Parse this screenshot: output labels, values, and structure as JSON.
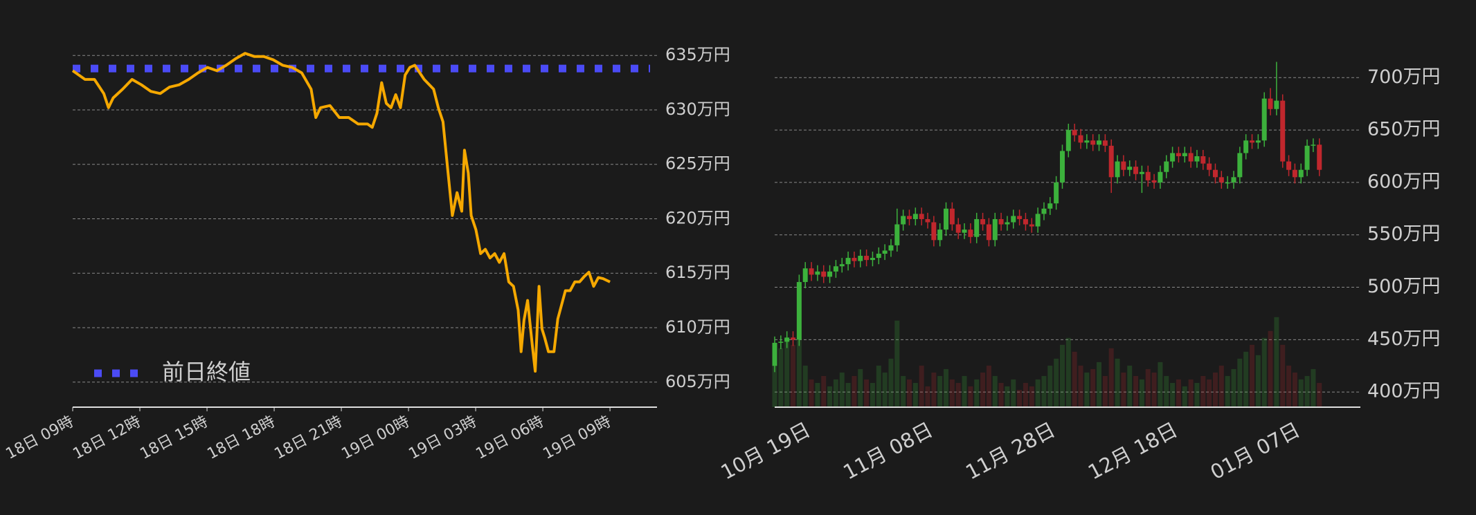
{
  "chart_data": [
    {
      "type": "line",
      "color": "#f5a800",
      "grid": true,
      "x": [
        0,
        0.55,
        0.97,
        1.39,
        1.6,
        1.81,
        2.23,
        2.65,
        3.07,
        3.49,
        3.91,
        4.33,
        4.75,
        5.18,
        5.6,
        6.02,
        6.44,
        6.86,
        7.28,
        7.7,
        8.12,
        8.54,
        8.96,
        9.38,
        9.8,
        10.23,
        10.65,
        10.86,
        11.07,
        11.49,
        11.91,
        12.33,
        12.75,
        13.17,
        13.38,
        13.59,
        13.8,
        14.01,
        14.22,
        14.43,
        14.64,
        14.85,
        15.06,
        15.28,
        15.7,
        16.12,
        16.33,
        16.54,
        16.75,
        16.96,
        17.17,
        17.38,
        17.5,
        17.67,
        17.8,
        18.01,
        18.22,
        18.43,
        18.64,
        18.85,
        19.06,
        19.27,
        19.48,
        19.69,
        19.9,
        20.03,
        20.16,
        20.32,
        20.54,
        20.66,
        20.83,
        20.96,
        21.08,
        21.25,
        21.5,
        21.67,
        21.84,
        22.01,
        22.22,
        22.43,
        22.64,
        22.85,
        23.06,
        23.27,
        23.48,
        23.69,
        24.0
      ],
      "values": [
        633.6,
        632.8,
        632.8,
        631.5,
        630.2,
        631.1,
        631.9,
        632.8,
        632.3,
        631.7,
        631.5,
        632.1,
        632.3,
        632.8,
        633.4,
        633.9,
        633.6,
        634.1,
        634.7,
        635.2,
        634.9,
        634.9,
        634.6,
        634.1,
        633.9,
        633.4,
        631.9,
        629.3,
        630.2,
        630.4,
        629.3,
        629.3,
        628.7,
        628.7,
        628.4,
        629.7,
        632.5,
        630.6,
        630.2,
        631.4,
        630.2,
        633.2,
        633.9,
        634.1,
        632.8,
        631.9,
        630.2,
        628.9,
        624.6,
        620.3,
        622.4,
        620.7,
        626.3,
        624.2,
        620.3,
        619.0,
        616.8,
        617.2,
        616.4,
        616.8,
        616.0,
        616.8,
        614.2,
        613.8,
        611.6,
        607.8,
        610.7,
        612.5,
        608.2,
        606.0,
        613.8,
        609.9,
        609.1,
        607.8,
        607.8,
        610.8,
        612.1,
        613.4,
        613.4,
        614.2,
        614.2,
        614.7,
        615.1,
        613.8,
        614.6,
        614.5,
        614.2
      ],
      "reference": {
        "name": "前日終値",
        "value": 633.8,
        "color": "#4b4bf5"
      },
      "xlim": [
        0,
        26.1
      ],
      "xticks": [
        {
          "value": 0,
          "label": "18日 09時"
        },
        {
          "value": 3,
          "label": "18日 12時"
        },
        {
          "value": 6,
          "label": "18日 15時"
        },
        {
          "value": 9,
          "label": "18日 18時"
        },
        {
          "value": 12,
          "label": "18日 21時"
        },
        {
          "value": 15,
          "label": "19日 00時"
        },
        {
          "value": 18,
          "label": "19日 03時"
        },
        {
          "value": 21,
          "label": "19日 06時"
        },
        {
          "value": 24,
          "label": "19日 09時"
        }
      ],
      "ylim": [
        602.7,
        636.6
      ],
      "yticks": [
        {
          "value": 605,
          "label": "605万円"
        },
        {
          "value": 610,
          "label": "610万円"
        },
        {
          "value": 615,
          "label": "615万円"
        },
        {
          "value": 620,
          "label": "620万円"
        },
        {
          "value": 625,
          "label": "625万円"
        },
        {
          "value": 630,
          "label": "630万円"
        },
        {
          "value": 635,
          "label": "635万円"
        }
      ]
    },
    {
      "type": "candlestick",
      "up_color": "#3cb13c",
      "down_color": "#c0272d",
      "grid": true,
      "categories": [
        "10月 19日",
        null,
        null,
        null,
        null,
        null,
        null,
        null,
        null,
        null,
        null,
        null,
        null,
        null,
        null,
        null,
        null,
        null,
        null,
        null,
        "11月 08日",
        null,
        null,
        null,
        null,
        null,
        null,
        null,
        null,
        null,
        null,
        null,
        null,
        null,
        null,
        null,
        null,
        null,
        null,
        null,
        "11月 28日",
        null,
        null,
        null,
        null,
        null,
        null,
        null,
        null,
        null,
        null,
        null,
        null,
        null,
        null,
        null,
        null,
        null,
        null,
        null,
        "12月 18日",
        null,
        null,
        null,
        null,
        null,
        null,
        null,
        null,
        null,
        null,
        null,
        null,
        null,
        null,
        null,
        null,
        null,
        null,
        null,
        "01月 07日",
        null,
        null,
        null,
        null,
        null,
        null,
        null,
        null,
        null
      ],
      "open": [
        425,
        447,
        448,
        452,
        450,
        505,
        518,
        512,
        515,
        510,
        515,
        520,
        522,
        528,
        525,
        530,
        526,
        528,
        532,
        535,
        540,
        560,
        568,
        565,
        570,
        565,
        562,
        545,
        555,
        575,
        560,
        552,
        555,
        548,
        565,
        560,
        545,
        565,
        560,
        562,
        568,
        565,
        560,
        558,
        570,
        575,
        580,
        600,
        630,
        650,
        645,
        638,
        640,
        636,
        640,
        635,
        605,
        620,
        612,
        615,
        608,
        610,
        602,
        600,
        610,
        620,
        628,
        625,
        628,
        620,
        625,
        618,
        612,
        605,
        600,
        600,
        605,
        628,
        640,
        638,
        640,
        680,
        670,
        678,
        620,
        612,
        605,
        612,
        635,
        636
      ],
      "high": [
        453,
        454,
        458,
        458,
        512,
        524,
        524,
        521,
        521,
        521,
        526,
        528,
        534,
        534,
        536,
        536,
        534,
        538,
        541,
        546,
        575,
        574,
        574,
        576,
        576,
        571,
        568,
        561,
        581,
        581,
        566,
        561,
        561,
        571,
        571,
        566,
        571,
        571,
        568,
        574,
        574,
        571,
        566,
        576,
        581,
        586,
        606,
        636,
        656,
        656,
        651,
        646,
        646,
        646,
        646,
        641,
        626,
        626,
        621,
        621,
        616,
        616,
        608,
        616,
        626,
        634,
        634,
        634,
        634,
        631,
        631,
        624,
        618,
        611,
        606,
        611,
        634,
        646,
        646,
        646,
        686,
        690,
        715,
        684,
        626,
        618,
        618,
        641,
        642,
        642
      ],
      "low": [
        419,
        441,
        442,
        444,
        444,
        499,
        506,
        506,
        504,
        504,
        509,
        514,
        516,
        519,
        519,
        520,
        520,
        522,
        526,
        529,
        534,
        554,
        559,
        559,
        559,
        556,
        539,
        539,
        549,
        554,
        546,
        546,
        542,
        542,
        554,
        539,
        539,
        554,
        554,
        556,
        559,
        554,
        552,
        552,
        564,
        569,
        574,
        594,
        624,
        639,
        632,
        632,
        630,
        630,
        629,
        590,
        599,
        606,
        606,
        602,
        590,
        596,
        594,
        594,
        604,
        614,
        619,
        619,
        614,
        614,
        612,
        606,
        599,
        594,
        594,
        594,
        599,
        622,
        632,
        632,
        634,
        664,
        664,
        614,
        606,
        599,
        599,
        606,
        629,
        606
      ],
      "close": [
        447,
        448,
        452,
        450,
        505,
        518,
        512,
        515,
        510,
        515,
        520,
        522,
        528,
        525,
        530,
        526,
        528,
        532,
        535,
        540,
        560,
        568,
        565,
        570,
        565,
        562,
        545,
        555,
        575,
        560,
        552,
        555,
        548,
        565,
        560,
        545,
        565,
        560,
        562,
        568,
        565,
        560,
        558,
        570,
        575,
        580,
        600,
        630,
        650,
        645,
        638,
        640,
        636,
        640,
        635,
        605,
        620,
        612,
        615,
        608,
        610,
        602,
        600,
        610,
        620,
        628,
        625,
        628,
        620,
        625,
        618,
        612,
        605,
        600,
        600,
        605,
        628,
        640,
        638,
        640,
        680,
        670,
        678,
        620,
        612,
        605,
        612,
        635,
        636,
        612
      ],
      "volume": [
        18,
        17,
        19,
        18,
        20,
        12,
        8,
        7,
        9,
        6,
        8,
        10,
        7,
        9,
        11,
        8,
        7,
        12,
        10,
        14,
        25,
        9,
        8,
        7,
        12,
        6,
        10,
        9,
        11,
        8,
        7,
        9,
        6,
        8,
        10,
        12,
        9,
        7,
        6,
        8,
        5,
        7,
        6,
        8,
        9,
        12,
        14,
        18,
        20,
        16,
        12,
        10,
        11,
        13,
        9,
        17,
        14,
        10,
        12,
        9,
        8,
        11,
        10,
        13,
        9,
        7,
        8,
        6,
        8,
        7,
        9,
        8,
        10,
        12,
        9,
        11,
        14,
        16,
        18,
        15,
        20,
        22,
        26,
        18,
        12,
        10,
        8,
        9,
        11,
        7
      ],
      "y2lim": [
        0,
        100
      ],
      "ylim": [
        385.6,
        716
      ],
      "yticks": [
        {
          "value": 400,
          "label": "400万円"
        },
        {
          "value": 450,
          "label": "450万円"
        },
        {
          "value": 500,
          "label": "500万円"
        },
        {
          "value": 550,
          "label": "550万円"
        },
        {
          "value": 600,
          "label": "600万円"
        },
        {
          "value": 650,
          "label": "650万円"
        },
        {
          "value": 700,
          "label": "700万円"
        }
      ]
    }
  ]
}
